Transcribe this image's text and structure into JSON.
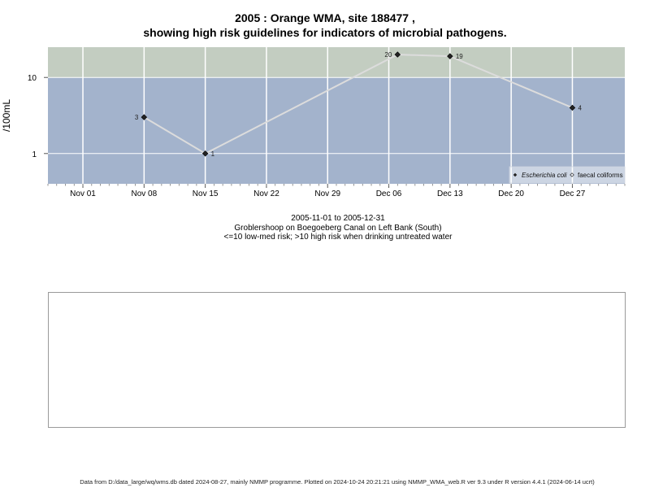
{
  "title_line1": "2005 : Orange WMA, site 188477 ,",
  "title_line2": "showing high risk guidelines for indicators of microbial pathogens.",
  "subtitle_dates": "2005-11-01 to 2005-12-31",
  "subtitle_location": "Groblershoop on Boegoeberg Canal on Left Bank (South)",
  "subtitle_risk": "<=10 low-med risk; >10 high risk when drinking untreated water",
  "footer": "Data from D:/data_large/wq/wms.db dated 2024-08-27, mainly NMMP programme. Plotted on 2024-10-24 20:21:21 using NMMP_WMA_web.R ver 9.3 under R version 4.4.1 (2024-06-14 ucrt)",
  "colors": {
    "low_risk_band": "#a3b3cc",
    "high_risk_band": "#c3cdc1",
    "series_line": "#dcdcdc",
    "point": "#222222"
  },
  "chart_data": {
    "type": "line",
    "ylabel": "/100mL",
    "yscale": "log",
    "ylim": [
      0.4,
      25
    ],
    "y_ticks": [
      1,
      10
    ],
    "y_tick_labels": [
      "1",
      "10"
    ],
    "threshold": 10,
    "xlim": [
      "2005-10-28",
      "2006-01-02"
    ],
    "x_ticks": [
      "2005-11-01",
      "2005-11-08",
      "2005-11-15",
      "2005-11-22",
      "2005-11-29",
      "2005-12-06",
      "2005-12-13",
      "2005-12-20",
      "2005-12-27"
    ],
    "x_tick_labels": [
      "Nov 01",
      "Nov 08",
      "Nov 15",
      "Nov 22",
      "Nov 29",
      "Dec 06",
      "Dec 13",
      "Dec 20",
      "Dec 27"
    ],
    "legend_position": "bottom-right",
    "grid": true,
    "series": [
      {
        "name": "Escherichia coli",
        "marker": "filled-diamond",
        "points": [
          {
            "x": "2005-11-08",
            "y": 3,
            "label": "3",
            "label_side": "left"
          },
          {
            "x": "2005-11-15",
            "y": 1,
            "label": "1",
            "label_side": "right"
          },
          {
            "x": "2005-12-07",
            "y": 20,
            "label": "20",
            "label_side": "left"
          },
          {
            "x": "2005-12-13",
            "y": 19,
            "label": "19",
            "label_side": "right"
          },
          {
            "x": "2005-12-27",
            "y": 4,
            "label": "4",
            "label_side": "right"
          }
        ]
      },
      {
        "name": "faecal coliforms",
        "marker": "open-diamond",
        "points": []
      }
    ]
  }
}
